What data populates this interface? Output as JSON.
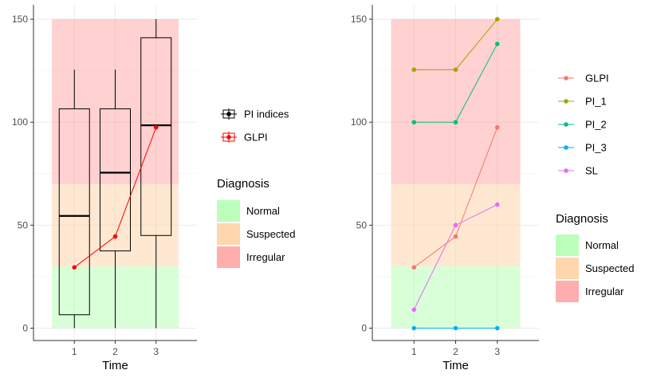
{
  "colors": {
    "normal": "#aaffaa",
    "suspected": "#ffcc99",
    "irregular": "#ff9999",
    "GLPI": "#F8766D",
    "PI_1": "#A3A500",
    "PI_2": "#00BF7D",
    "PI_3": "#00B0F6",
    "SL": "#E76BF3",
    "red": "#ff0000",
    "black": "#000000"
  },
  "chart_data": [
    {
      "type": "box",
      "xlabel": "Time",
      "ylabel": "",
      "ylim": [
        -6,
        157
      ],
      "yticks": [
        0,
        50,
        100,
        150
      ],
      "categories": [
        "1",
        "2",
        "3"
      ],
      "bands": [
        {
          "label": "Normal",
          "from": 0,
          "to": 30
        },
        {
          "label": "Suspected",
          "from": 30,
          "to": 70
        },
        {
          "label": "Irregular",
          "from": 70,
          "to": 150
        }
      ],
      "boxes": [
        {
          "x": "1",
          "min": 0,
          "q1": 6.5,
          "median": 54.5,
          "q3": 106.5,
          "max": 125.5
        },
        {
          "x": "2",
          "min": 0,
          "q1": 37.5,
          "median": 75.5,
          "q3": 106.5,
          "max": 125.5
        },
        {
          "x": "3",
          "min": 0,
          "q1": 45,
          "median": 98.5,
          "q3": 141,
          "max": 150
        }
      ],
      "series": [
        {
          "name": "GLPI",
          "values": [
            29.5,
            44.5,
            97.5
          ]
        }
      ],
      "legend": {
        "items": [
          "PI indices",
          "GLPI"
        ],
        "title": "Diagnosis",
        "fill_items": [
          "Normal",
          "Suspected",
          "Irregular"
        ]
      }
    },
    {
      "type": "line",
      "xlabel": "Time",
      "ylabel": "",
      "ylim": [
        -6,
        157
      ],
      "yticks": [
        0,
        50,
        100,
        150
      ],
      "categories": [
        "1",
        "2",
        "3"
      ],
      "bands": [
        {
          "label": "Normal",
          "from": 0,
          "to": 30
        },
        {
          "label": "Suspected",
          "from": 30,
          "to": 70
        },
        {
          "label": "Irregular",
          "from": 70,
          "to": 150
        }
      ],
      "series": [
        {
          "name": "GLPI",
          "values": [
            29.5,
            44.5,
            97.5
          ]
        },
        {
          "name": "PI_1",
          "values": [
            125.5,
            125.5,
            150
          ]
        },
        {
          "name": "PI_2",
          "values": [
            100,
            100,
            138
          ]
        },
        {
          "name": "PI_3",
          "values": [
            0,
            0,
            0
          ]
        },
        {
          "name": "SL",
          "values": [
            9,
            50,
            60
          ]
        }
      ],
      "legend": {
        "items": [
          "GLPI",
          "PI_1",
          "PI_2",
          "PI_3",
          "SL"
        ],
        "title": "Diagnosis",
        "fill_items": [
          "Normal",
          "Suspected",
          "Irregular"
        ]
      }
    }
  ]
}
